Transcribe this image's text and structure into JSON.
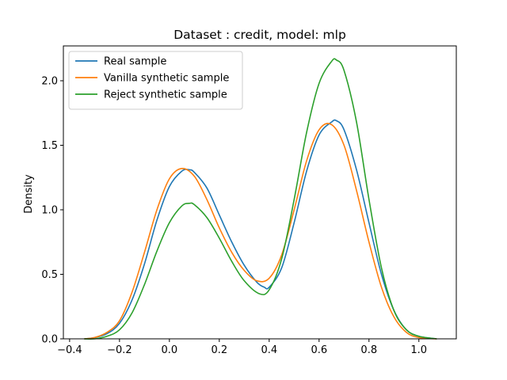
{
  "chart_data": {
    "type": "line",
    "title": "Dataset : credit, model: mlp",
    "xlabel": "",
    "ylabel": "Density",
    "xlim": [
      -0.425,
      1.15
    ],
    "ylim": [
      0,
      2.27
    ],
    "xticks": [
      -0.4,
      -0.2,
      0.0,
      0.2,
      0.4,
      0.6,
      0.8,
      1.0
    ],
    "xtick_labels": [
      "−0.4",
      "−0.2",
      "0.0",
      "0.2",
      "0.4",
      "0.6",
      "0.8",
      "1.0"
    ],
    "yticks": [
      0.0,
      0.5,
      1.0,
      1.5,
      2.0
    ],
    "ytick_labels": [
      "0.0",
      "0.5",
      "1.0",
      "1.5",
      "2.0"
    ],
    "grid": false,
    "legend_position": "top-left",
    "series": [
      {
        "name": "Real sample",
        "color": "#1f77b4",
        "x": [
          -0.34,
          -0.3,
          -0.25,
          -0.2,
          -0.15,
          -0.1,
          -0.05,
          0.0,
          0.05,
          0.08,
          0.1,
          0.15,
          0.2,
          0.25,
          0.3,
          0.35,
          0.38,
          0.4,
          0.45,
          0.5,
          0.55,
          0.6,
          0.65,
          0.67,
          0.7,
          0.75,
          0.8,
          0.85,
          0.9,
          0.95,
          1.0,
          1.07
        ],
        "y": [
          0.0,
          0.01,
          0.04,
          0.12,
          0.3,
          0.58,
          0.92,
          1.18,
          1.3,
          1.31,
          1.29,
          1.17,
          0.96,
          0.75,
          0.57,
          0.44,
          0.4,
          0.4,
          0.55,
          0.9,
          1.3,
          1.58,
          1.68,
          1.69,
          1.62,
          1.31,
          0.9,
          0.5,
          0.22,
          0.07,
          0.02,
          0.0
        ]
      },
      {
        "name": "Vanilla synthetic sample",
        "color": "#ff7f0e",
        "x": [
          -0.34,
          -0.3,
          -0.25,
          -0.2,
          -0.15,
          -0.1,
          -0.05,
          0.0,
          0.05,
          0.1,
          0.15,
          0.2,
          0.25,
          0.3,
          0.35,
          0.4,
          0.45,
          0.5,
          0.55,
          0.6,
          0.65,
          0.7,
          0.75,
          0.8,
          0.85,
          0.9,
          0.95,
          1.0,
          1.07
        ],
        "y": [
          0.0,
          0.01,
          0.05,
          0.14,
          0.36,
          0.67,
          1.0,
          1.24,
          1.32,
          1.26,
          1.08,
          0.86,
          0.67,
          0.53,
          0.45,
          0.47,
          0.65,
          1.0,
          1.38,
          1.62,
          1.66,
          1.5,
          1.15,
          0.75,
          0.4,
          0.17,
          0.05,
          0.01,
          0.0
        ]
      },
      {
        "name": "Reject synthetic sample",
        "color": "#2ca02c",
        "x": [
          -0.34,
          -0.3,
          -0.25,
          -0.2,
          -0.15,
          -0.1,
          -0.05,
          0.0,
          0.05,
          0.08,
          0.1,
          0.15,
          0.2,
          0.25,
          0.3,
          0.36,
          0.4,
          0.45,
          0.5,
          0.55,
          0.6,
          0.65,
          0.67,
          0.7,
          0.75,
          0.8,
          0.85,
          0.9,
          0.95,
          1.0,
          1.07
        ],
        "y": [
          0.0,
          0.0,
          0.02,
          0.07,
          0.2,
          0.42,
          0.68,
          0.9,
          1.03,
          1.05,
          1.04,
          0.94,
          0.78,
          0.6,
          0.45,
          0.35,
          0.38,
          0.62,
          1.08,
          1.6,
          1.98,
          2.15,
          2.16,
          2.08,
          1.68,
          1.08,
          0.55,
          0.22,
          0.07,
          0.02,
          0.0
        ]
      }
    ]
  }
}
